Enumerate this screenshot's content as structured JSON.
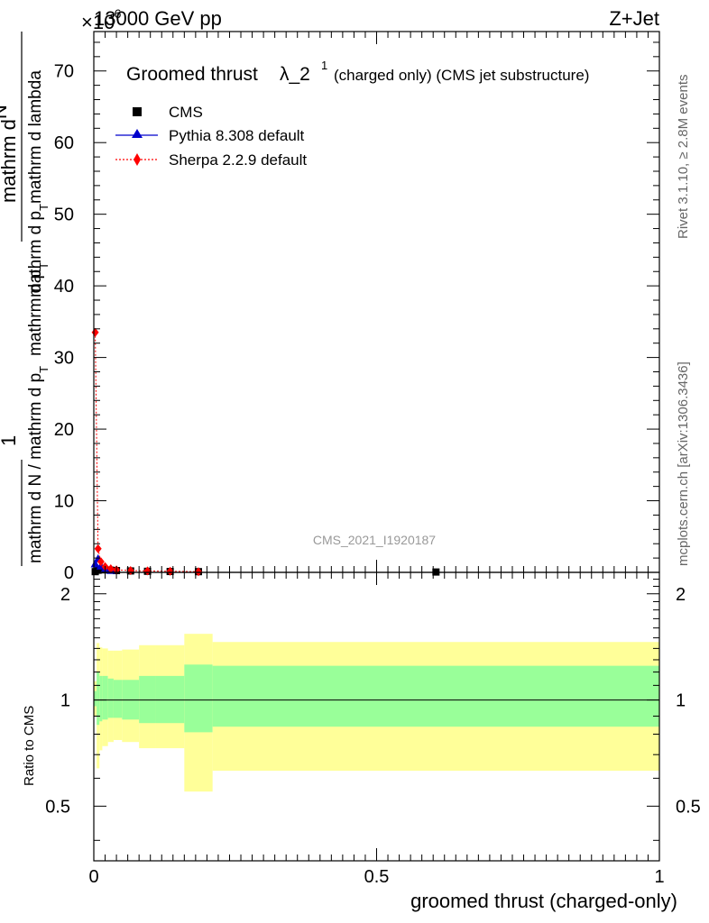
{
  "header": {
    "left": "13000 GeV pp",
    "right": "Z+Jet",
    "exponent_prefix": "×10",
    "exponent_value": "-6"
  },
  "title": {
    "main": "Groomed thrust",
    "lambda": "λ_2",
    "sup": "1",
    "sub": "(charged only) (CMS jet substructure)"
  },
  "y_axis_label_lines": [
    "mathrm d",
    "N",
    "mathrm d p_T mathrm d p_T mathrm d lambda",
    "1",
    "mathrm d N / mathrm d p_T mathrm d p_T"
  ],
  "y_axis_label": {
    "numerator_left": "mathrm d",
    "numerator_n": "N",
    "denominator": "mathrm d p",
    "denominator_sub": "T",
    "denominator_tail": "mathrm d lambda",
    "pt": "mathrm d p",
    "pt_sub": "T",
    "one": "1",
    "lower": "mathrm d N / mathrm d p",
    "lower_sub": "T"
  },
  "ratio_ylabel": "Ratio to CMS",
  "xlabel": "groomed thrust (charged-only)",
  "analysis_id": "CMS_2021_I1920187",
  "side_text": {
    "rivet": "Rivet 3.1.10, ≥ 2.8M events",
    "mcplots": "mcplots.cern.ch [arXiv:1306.3436]"
  },
  "colors": {
    "cms": "#000000",
    "pythia": "#0000cc",
    "sherpa": "#ff0000",
    "band_inner": "#99ff99",
    "band_outer": "#ffff99"
  },
  "chart_data": {
    "type": "scatter",
    "main_panel": {
      "xlim": [
        0,
        1
      ],
      "ylim": [
        0,
        75
      ],
      "y_ticks": [
        0,
        10,
        20,
        30,
        40,
        50,
        60,
        70
      ],
      "y_tick_labels": [
        "0",
        "10",
        "20",
        "30",
        "40",
        "50",
        "60",
        "70"
      ],
      "series": [
        {
          "name": "CMS",
          "marker": "square",
          "x": [
            0.0025,
            0.0075,
            0.0125,
            0.02,
            0.03,
            0.04,
            0.065,
            0.095,
            0.135,
            0.185,
            0.605
          ],
          "y": [
            0.1,
            0.3,
            0.4,
            0.35,
            0.3,
            0.25,
            0.2,
            0.15,
            0.12,
            0.1,
            0.05
          ]
        },
        {
          "name": "Pythia 8.308 default",
          "marker": "triangle",
          "x": [
            0.0025,
            0.0075,
            0.0125,
            0.02,
            0.03
          ],
          "y": [
            1.2,
            1.9,
            0.9,
            0.5,
            0.3
          ]
        },
        {
          "name": "Sherpa 2.2.9 default",
          "marker": "diamond",
          "x": [
            0.0025,
            0.0075,
            0.0125,
            0.02,
            0.03,
            0.04,
            0.065,
            0.095,
            0.135,
            0.185
          ],
          "y": [
            33.5,
            3.3,
            1.5,
            0.8,
            0.5,
            0.35,
            0.25,
            0.2,
            0.15,
            0.1
          ]
        }
      ]
    },
    "ratio_panel": {
      "xlim": [
        0,
        1
      ],
      "ylim": [
        0.35,
        2.3
      ],
      "y_ticks": [
        0.5,
        1,
        2
      ],
      "y_tick_labels": [
        "0.5",
        "1",
        "2"
      ],
      "x_ticks": [
        0,
        0.5,
        1
      ],
      "x_tick_labels": [
        "0",
        "0.5",
        "1"
      ],
      "bins": [
        0,
        0.005,
        0.01,
        0.015,
        0.025,
        0.035,
        0.05,
        0.08,
        0.11,
        0.16,
        0.21,
        1.0
      ],
      "inner_band": {
        "low": [
          0.96,
          0.85,
          0.87,
          0.88,
          0.89,
          0.89,
          0.88,
          0.86,
          0.86,
          0.81,
          0.84
        ],
        "high": [
          1.06,
          1.2,
          1.17,
          1.17,
          1.15,
          1.14,
          1.14,
          1.17,
          1.17,
          1.26,
          1.25
        ]
      },
      "outer_band": {
        "low": [
          0.9,
          0.64,
          0.72,
          0.74,
          0.76,
          0.77,
          0.76,
          0.73,
          0.73,
          0.55,
          0.63
        ],
        "high": [
          1.13,
          1.45,
          1.41,
          1.4,
          1.38,
          1.38,
          1.39,
          1.43,
          1.43,
          1.54,
          1.46
        ]
      },
      "reference_line": 1
    }
  }
}
